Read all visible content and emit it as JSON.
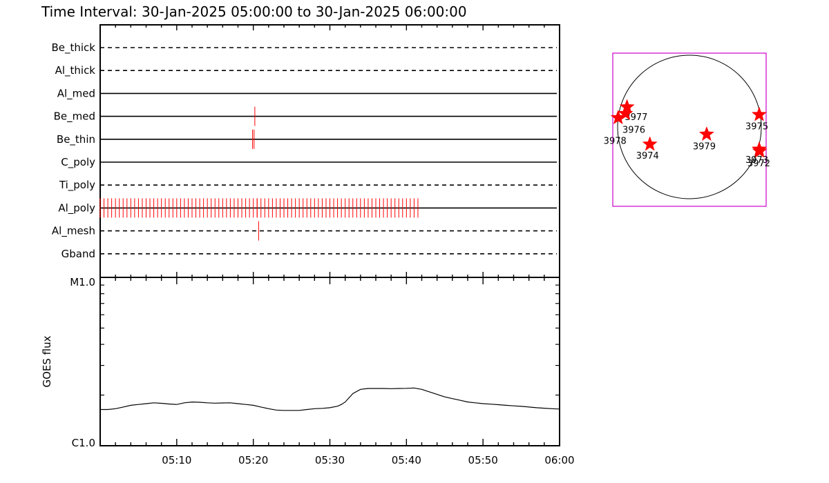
{
  "title": "Time Interval: 30-Jan-2025 05:00:00 to 30-Jan-2025 06:00:00",
  "colors": {
    "axis": "#000000",
    "marker": "#ff0000",
    "map_box": "#cc00cc"
  },
  "chart_data": [
    {
      "type": "timeline",
      "name": "filter-coverage",
      "xlim_minutes": [
        0,
        60
      ],
      "x_tick_labels": [
        "05:10",
        "05:20",
        "05:30",
        "05:40",
        "05:50",
        "06:00"
      ],
      "x_tick_minutes": [
        10,
        20,
        30,
        40,
        50,
        60
      ],
      "rows": [
        {
          "label": "Be_thick",
          "style": "dashed",
          "marks": []
        },
        {
          "label": "Al_thick",
          "style": "dashed",
          "marks": []
        },
        {
          "label": "Al_med",
          "style": "solid",
          "marks": []
        },
        {
          "label": "Be_med",
          "style": "solid",
          "marks": [
            20.2
          ]
        },
        {
          "label": "Be_thin",
          "style": "solid",
          "marks": [
            19.9,
            20.1
          ]
        },
        {
          "label": "C_poly",
          "style": "solid",
          "marks": []
        },
        {
          "label": "Ti_poly",
          "style": "dashed",
          "marks": []
        },
        {
          "label": "Al_poly",
          "style": "solid",
          "marks_range": {
            "start": 0,
            "end": 41.6,
            "step": 0.5
          },
          "marks": [
            20.5
          ]
        },
        {
          "label": "Al_mesh",
          "style": "dashed",
          "marks": [
            20.7
          ]
        },
        {
          "label": "Gband",
          "style": "dashed",
          "marks": []
        }
      ]
    },
    {
      "type": "line",
      "name": "goes-flux",
      "ylabel": "GOES flux",
      "y_tick_labels": [
        "C1.0",
        "M1.0"
      ],
      "ylim_log": [
        -6,
        -5
      ],
      "xlim_minutes": [
        0,
        60
      ],
      "x_minutes": [
        0,
        1,
        2,
        3,
        4,
        5,
        6,
        7,
        8,
        9,
        10,
        11,
        12,
        13,
        14,
        15,
        16,
        17,
        18,
        19,
        20,
        21,
        22,
        23,
        24,
        25,
        26,
        27,
        28,
        29,
        30,
        31,
        31.5,
        32,
        33,
        34,
        35,
        36,
        37,
        38,
        39,
        40,
        41,
        42,
        43,
        44,
        45,
        46,
        47,
        48,
        49,
        50,
        51,
        52,
        53,
        54,
        55,
        56,
        57,
        58,
        59,
        60
      ],
      "y_log": [
        -5.785,
        -5.785,
        -5.78,
        -5.77,
        -5.76,
        -5.755,
        -5.75,
        -5.745,
        -5.748,
        -5.752,
        -5.755,
        -5.745,
        -5.74,
        -5.742,
        -5.745,
        -5.747,
        -5.746,
        -5.745,
        -5.75,
        -5.755,
        -5.76,
        -5.77,
        -5.78,
        -5.788,
        -5.79,
        -5.79,
        -5.79,
        -5.785,
        -5.78,
        -5.778,
        -5.774,
        -5.765,
        -5.755,
        -5.74,
        -5.69,
        -5.665,
        -5.66,
        -5.66,
        -5.66,
        -5.661,
        -5.66,
        -5.659,
        -5.657,
        -5.665,
        -5.68,
        -5.695,
        -5.71,
        -5.72,
        -5.73,
        -5.74,
        -5.745,
        -5.75,
        -5.753,
        -5.756,
        -5.76,
        -5.763,
        -5.766,
        -5.77,
        -5.774,
        -5.777,
        -5.78,
        -5.782
      ]
    },
    {
      "type": "scatter",
      "name": "solar-disk-map",
      "points": [
        {
          "label": "3977",
          "x": 0.093,
          "y": 0.352
        },
        {
          "label": "3976",
          "x": 0.083,
          "y": 0.395
        },
        {
          "label": "3978",
          "x": 0.035,
          "y": 0.422
        },
        {
          "label": "3975",
          "x": 0.955,
          "y": 0.402
        },
        {
          "label": "3979",
          "x": 0.612,
          "y": 0.53
        },
        {
          "label": "3974",
          "x": 0.242,
          "y": 0.595
        },
        {
          "label": "3973",
          "x": 0.955,
          "y": 0.628
        },
        {
          "label": "3972",
          "x": 0.958,
          "y": 0.64
        }
      ],
      "label_offsets": {
        "3977": [
          -0.015,
          0.085
        ],
        "3976": [
          -0.02,
          0.125
        ],
        "3978": [
          -0.095,
          0.17
        ],
        "3975": [
          -0.09,
          0.095
        ],
        "3979": [
          -0.09,
          0.098
        ],
        "3974": [
          -0.09,
          0.095
        ],
        "3973": [
          -0.09,
          0.088
        ],
        "3972": [
          -0.08,
          0.098
        ]
      }
    }
  ]
}
